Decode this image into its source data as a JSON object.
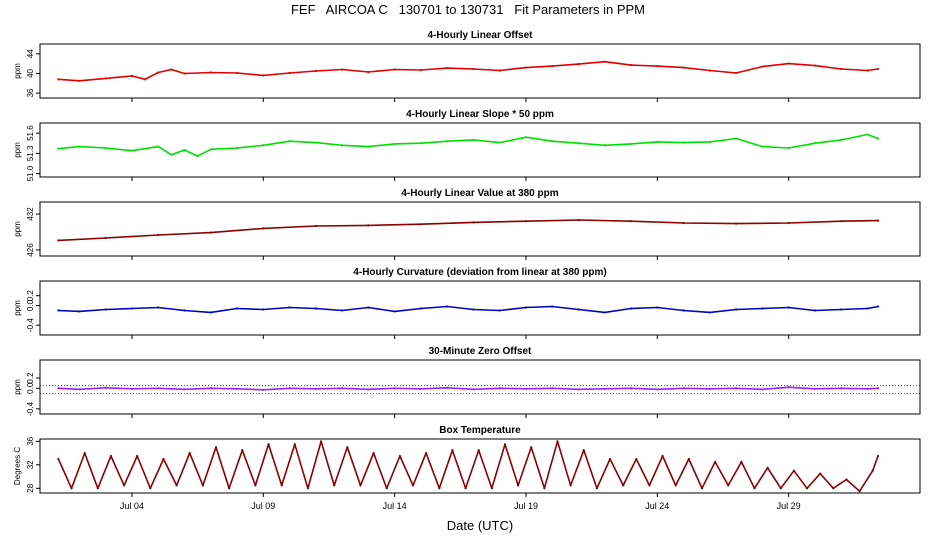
{
  "title": "FEF   AIRCOA C   130701 to 130731   Fit Parameters in PPM",
  "xlabel": "Date (UTC)",
  "x_ticks": [
    "Jul 04",
    "Jul 09",
    "Jul 14",
    "Jul 19",
    "Jul 24",
    "Jul 29"
  ],
  "colors": {
    "red": "#e00000",
    "green": "#00e000",
    "darkred": "#8b0000",
    "blue": "#0000c0",
    "purple": "#a020f0"
  },
  "chart_data": [
    {
      "type": "line",
      "title": "4-Hourly Linear Offset",
      "ylabel": "ppm",
      "ylim": [
        35,
        46
      ],
      "yticks": [
        "36",
        "40",
        "44"
      ],
      "color": "red",
      "x": [
        1.2,
        2.0,
        3.0,
        4.0,
        4.5,
        5.0,
        5.5,
        6.0,
        7.0,
        8.0,
        9.0,
        10.0,
        11.0,
        12.0,
        13.0,
        14.0,
        15.0,
        16.0,
        17.0,
        18.0,
        19.0,
        20.0,
        21.0,
        22.0,
        23.0,
        24.0,
        25.0,
        26.0,
        27.0,
        28.0,
        29.0,
        30.0,
        31.0,
        32.0,
        32.4
      ],
      "values": [
        38.8,
        38.5,
        39.0,
        39.5,
        38.8,
        40.2,
        40.8,
        40.0,
        40.2,
        40.1,
        39.6,
        40.1,
        40.5,
        40.8,
        40.3,
        40.8,
        40.7,
        41.1,
        40.9,
        40.6,
        41.2,
        41.5,
        41.9,
        42.4,
        41.7,
        41.5,
        41.2,
        40.6,
        40.1,
        41.4,
        42.0,
        41.6,
        40.9,
        40.6,
        40.9
      ]
    },
    {
      "type": "line",
      "title": "4-Hourly Linear Slope * 50 ppm",
      "ylabel": "ppm",
      "ylim": [
        50.95,
        51.75
      ],
      "yticks": [
        "51.0",
        "51.3",
        "51.6"
      ],
      "color": "green",
      "x": [
        1.2,
        2.0,
        3.0,
        4.0,
        5.0,
        5.5,
        6.0,
        6.5,
        7.0,
        8.0,
        9.0,
        10.0,
        11.0,
        12.0,
        13.0,
        14.0,
        15.0,
        16.0,
        17.0,
        18.0,
        19.0,
        20.0,
        21.0,
        22.0,
        23.0,
        24.0,
        25.0,
        26.0,
        27.0,
        28.0,
        29.0,
        30.0,
        31.0,
        32.0,
        32.4
      ],
      "values": [
        51.37,
        51.4,
        51.38,
        51.34,
        51.4,
        51.28,
        51.35,
        51.26,
        51.36,
        51.38,
        51.42,
        51.48,
        51.46,
        51.42,
        51.4,
        51.44,
        51.45,
        51.48,
        51.5,
        51.46,
        51.54,
        51.48,
        51.45,
        51.42,
        51.44,
        51.47,
        51.46,
        51.47,
        51.52,
        51.4,
        51.38,
        51.45,
        51.5,
        51.58,
        51.52
      ]
    },
    {
      "type": "line",
      "title": "4-Hourly Linear Value at 380 ppm",
      "ylabel": "ppm",
      "ylim": [
        425,
        434
      ],
      "yticks": [
        "426",
        "432"
      ],
      "color": "darkred",
      "x": [
        1.2,
        3.0,
        5.0,
        7.0,
        9.0,
        11.0,
        13.0,
        15.0,
        17.0,
        19.0,
        21.0,
        23.0,
        25.0,
        27.0,
        29.0,
        31.0,
        32.4
      ],
      "values": [
        427.6,
        428.0,
        428.5,
        428.9,
        429.6,
        430.0,
        430.1,
        430.3,
        430.6,
        430.8,
        431.0,
        430.8,
        430.5,
        430.4,
        430.5,
        430.8,
        430.9
      ]
    },
    {
      "type": "line",
      "title": "4-Hourly Curvature (deviation from linear at 380 ppm)",
      "ylabel": "ppm",
      "ylim": [
        -0.6,
        0.5
      ],
      "yticks": [
        "-0.4",
        "0.0",
        "0.2"
      ],
      "color": "blue",
      "x": [
        1.2,
        2.0,
        3.0,
        4.0,
        5.0,
        6.0,
        7.0,
        8.0,
        9.0,
        10.0,
        11.0,
        12.0,
        13.0,
        14.0,
        15.0,
        16.0,
        17.0,
        18.0,
        19.0,
        20.0,
        21.0,
        22.0,
        23.0,
        24.0,
        25.0,
        26.0,
        27.0,
        28.0,
        29.0,
        30.0,
        31.0,
        32.0,
        32.4
      ],
      "values": [
        -0.1,
        -0.12,
        -0.08,
        -0.06,
        -0.04,
        -0.1,
        -0.14,
        -0.06,
        -0.08,
        -0.04,
        -0.06,
        -0.1,
        -0.04,
        -0.12,
        -0.06,
        -0.02,
        -0.08,
        -0.1,
        -0.04,
        -0.02,
        -0.08,
        -0.14,
        -0.06,
        -0.04,
        -0.1,
        -0.14,
        -0.08,
        -0.06,
        -0.04,
        -0.1,
        -0.08,
        -0.06,
        -0.02
      ]
    },
    {
      "type": "line",
      "title": "30-Minute Zero Offset",
      "ylabel": "ppm",
      "ylim": [
        -0.5,
        0.55
      ],
      "yticks": [
        "-0.4",
        "0.0",
        "0.2"
      ],
      "color": "purple",
      "x": [
        1.2,
        2.0,
        3.0,
        4.0,
        5.0,
        6.0,
        7.0,
        8.0,
        9.0,
        10.0,
        11.0,
        12.0,
        13.0,
        14.0,
        15.0,
        16.0,
        17.0,
        18.0,
        19.0,
        20.0,
        21.0,
        22.0,
        23.0,
        24.0,
        25.0,
        26.0,
        27.0,
        28.0,
        29.0,
        30.0,
        31.0,
        32.0,
        32.4
      ],
      "values": [
        0.0,
        -0.02,
        0.01,
        -0.01,
        0.0,
        -0.02,
        0.0,
        -0.01,
        -0.03,
        0.0,
        -0.01,
        0.0,
        -0.02,
        0.0,
        -0.01,
        0.01,
        -0.02,
        0.0,
        -0.01,
        0.0,
        -0.02,
        -0.01,
        0.0,
        -0.02,
        0.0,
        -0.01,
        0.0,
        -0.02,
        0.02,
        -0.01,
        0.0,
        -0.01,
        0.0
      ]
    },
    {
      "type": "line",
      "title": "Box Temperature",
      "ylabel": "Degrees C",
      "ylim": [
        27.2,
        36.4
      ],
      "yticks": [
        "28",
        "32",
        "36"
      ],
      "color": "darkred",
      "x": [
        1.2,
        1.7,
        2.2,
        2.7,
        3.2,
        3.7,
        4.2,
        4.7,
        5.2,
        5.7,
        6.2,
        6.7,
        7.2,
        7.7,
        8.2,
        8.7,
        9.2,
        9.7,
        10.2,
        10.7,
        11.2,
        11.7,
        12.2,
        12.7,
        13.2,
        13.7,
        14.2,
        14.7,
        15.2,
        15.7,
        16.2,
        16.7,
        17.2,
        17.7,
        18.2,
        18.7,
        19.2,
        19.7,
        20.2,
        20.7,
        21.2,
        21.7,
        22.2,
        22.7,
        23.2,
        23.7,
        24.2,
        24.7,
        25.2,
        25.7,
        26.2,
        26.7,
        27.2,
        27.7,
        28.2,
        28.7,
        29.2,
        29.7,
        30.2,
        30.7,
        31.2,
        31.7,
        32.2,
        32.4
      ],
      "values": [
        33.0,
        28.0,
        34.0,
        28.0,
        33.5,
        28.5,
        33.5,
        28.0,
        33.0,
        28.5,
        34.0,
        28.5,
        35.0,
        28.0,
        34.5,
        28.5,
        35.5,
        28.5,
        35.5,
        28.0,
        36.0,
        28.5,
        35.0,
        28.5,
        34.0,
        28.0,
        33.5,
        28.5,
        34.0,
        28.0,
        34.5,
        28.0,
        34.5,
        28.0,
        35.5,
        28.5,
        35.0,
        28.0,
        36.0,
        28.5,
        34.5,
        28.0,
        33.0,
        28.5,
        33.0,
        28.5,
        33.5,
        28.5,
        33.0,
        28.0,
        32.5,
        28.5,
        32.5,
        28.0,
        31.5,
        28.0,
        31.0,
        28.0,
        30.5,
        28.0,
        29.5,
        27.5,
        31.0,
        33.5
      ]
    }
  ]
}
